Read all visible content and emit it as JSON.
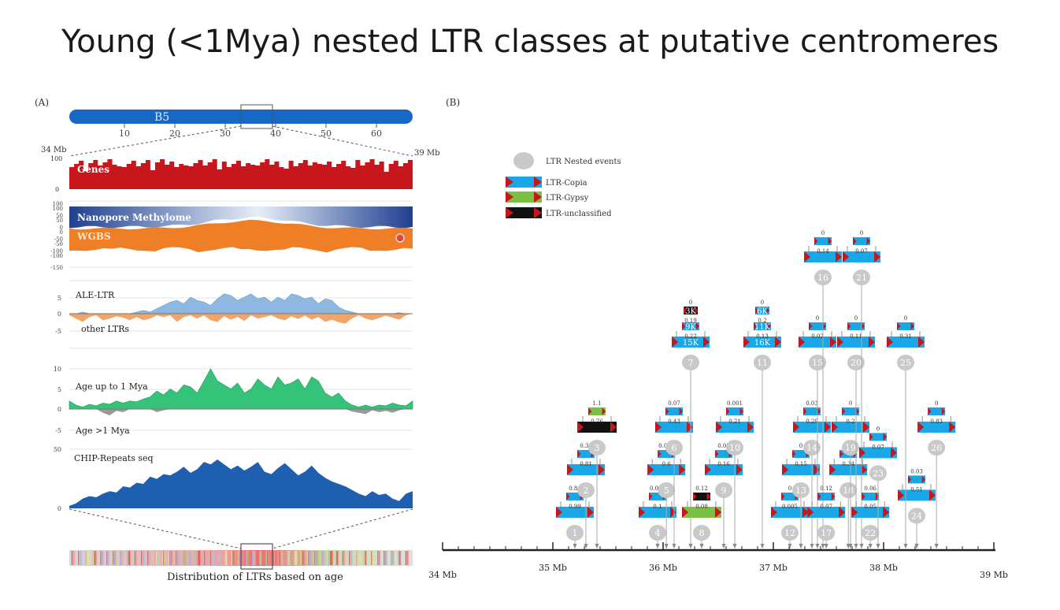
{
  "slide": {
    "title": "Young (<1Mya) nested LTR classes at putative centromeres"
  },
  "panel_a": {
    "label": "(A)",
    "chromosome": {
      "name": "B5",
      "ticks": [
        "10",
        "20",
        "30",
        "40",
        "50",
        "60"
      ],
      "zoom_start_label": "34 Mb",
      "zoom_end_label": "39 Mb"
    },
    "genes": {
      "label": "Genes",
      "y_max": "100",
      "y_zero": "0",
      "color": "#c8161d"
    },
    "methylation": {
      "nanopore_label": "Nanopore Methylome",
      "wgbs_label": "WGBS",
      "ticks": [
        "100",
        "50",
        "0",
        "-50",
        "-100",
        "100",
        "50",
        "0",
        "-50",
        "-100",
        "-150"
      ],
      "nanopore_color": "#1f3f8f",
      "wgbs_color": "#ef7f27"
    },
    "ale_ltr": {
      "label_top": "ALE-LTR",
      "label_bottom": "other LTRs",
      "ticks": [
        "5",
        "0",
        "-5"
      ],
      "top_color": "#8fb8e0",
      "bottom_color": "#f2a56b"
    },
    "age": {
      "label_top": "Age up to 1 Mya",
      "label_bottom": "Age >1 Mya",
      "ticks": [
        "10",
        "5",
        "0",
        "-5"
      ],
      "top_color": "#35c37a",
      "bottom_color": "#9a9a9a"
    },
    "chip": {
      "label": "CHIP-Repeats seq",
      "ticks": [
        "50",
        "0"
      ],
      "color": "#1f5fb0"
    },
    "distribution_label": "Distribution of LTRs based on age"
  },
  "panel_b": {
    "label": "(B)",
    "legend": {
      "nested_events": "LTR Nested events",
      "copia": "LTR-Copia",
      "gypsy": "LTR-Gypsy",
      "unclassified": "LTR-unclassified"
    },
    "colors": {
      "copia": "#1aa7e8",
      "gypsy": "#7ac143",
      "unclassified": "#111111",
      "ltr_end": "#c8161d",
      "node": "#c9c9c9"
    },
    "axis": {
      "ticks": [
        "34 Mb",
        "35 Mb",
        "36 Mb",
        "37 Mb",
        "38 Mb",
        "39 Mb"
      ]
    },
    "events": [
      {
        "id": "1",
        "position_mb": 35.2,
        "level": 1,
        "outer": {
          "type": "copia",
          "label": ""
        },
        "inner": {
          "type": "copia",
          "label": "0.99"
        },
        "top_value": "0.84"
      },
      {
        "id": "2",
        "position_mb": 35.3,
        "level": 2,
        "outer": {
          "type": "copia",
          "label": ""
        },
        "inner": {
          "type": "copia",
          "label": "0.81"
        },
        "top_value": "0.30"
      },
      {
        "id": "3",
        "position_mb": 35.4,
        "level": 3,
        "outer": {
          "type": "unclassified",
          "label": ""
        },
        "inner": {
          "type": "gypsy",
          "label": "0.76"
        },
        "top_value": "1.1"
      },
      {
        "id": "4",
        "position_mb": 35.95,
        "level": 1,
        "outer": {
          "type": "copia",
          "label": ""
        },
        "inner": {
          "type": "copia",
          "label": "0.1"
        },
        "top_value": "0.003"
      },
      {
        "id": "5",
        "position_mb": 36.03,
        "level": 2,
        "outer": {
          "type": "copia",
          "label": ""
        },
        "inner": {
          "type": "copia",
          "label": "0.6"
        },
        "top_value": "0.003"
      },
      {
        "id": "6",
        "position_mb": 36.1,
        "level": 3,
        "outer": {
          "type": "copia",
          "label": ""
        },
        "inner": {
          "type": "copia",
          "label": "0.43"
        },
        "top_value": "0.07"
      },
      {
        "id": "7",
        "position_mb": 36.25,
        "level": 5,
        "outer": {
          "type": "copia",
          "label": "15K"
        },
        "inner": {
          "type": "copia",
          "label": "9K"
        },
        "inner2": {
          "type": "unclassified",
          "label": "3K"
        },
        "mid_values": [
          "0.22",
          "0.19"
        ],
        "top_value": "0"
      },
      {
        "id": "8",
        "position_mb": 36.35,
        "level": 1,
        "outer": {
          "type": "gypsy",
          "label": ""
        },
        "inner": {
          "type": "unclassified",
          "label": "0.08"
        },
        "top_value": "0.12"
      },
      {
        "id": "9",
        "position_mb": 36.55,
        "level": 2,
        "outer": {
          "type": "copia",
          "label": ""
        },
        "inner": {
          "type": "copia",
          "label": "0.16"
        },
        "top_value": "0.07"
      },
      {
        "id": "10",
        "position_mb": 36.65,
        "level": 3,
        "outer": {
          "type": "copia",
          "label": ""
        },
        "inner": {
          "type": "copia",
          "label": "0.21"
        },
        "top_value": "0.001"
      },
      {
        "id": "11",
        "position_mb": 36.9,
        "level": 5,
        "outer": {
          "type": "copia",
          "label": "16K"
        },
        "inner": {
          "type": "copia",
          "label": "11K"
        },
        "inner2": {
          "type": "copia",
          "label": "6K"
        },
        "mid_values": [
          "0.13",
          "0.2"
        ],
        "top_value": "0"
      },
      {
        "id": "12",
        "position_mb": 37.15,
        "level": 1,
        "outer": {
          "type": "copia",
          "label": ""
        },
        "inner": {
          "type": "copia",
          "label": "0.005"
        },
        "top_value": "0"
      },
      {
        "id": "13",
        "position_mb": 37.25,
        "level": 2,
        "outer": {
          "type": "copia",
          "label": ""
        },
        "inner": {
          "type": "copia",
          "label": "0.15"
        },
        "top_value": "0"
      },
      {
        "id": "14",
        "position_mb": 37.35,
        "level": 3,
        "outer": {
          "type": "copia",
          "label": ""
        },
        "inner": {
          "type": "copia",
          "label": "0.29"
        },
        "top_value": "0.03"
      },
      {
        "id": "15",
        "position_mb": 37.4,
        "level": 5,
        "outer": {
          "type": "copia",
          "label": ""
        },
        "inner": {
          "type": "copia",
          "label": "0.02"
        },
        "top_value": "0"
      },
      {
        "id": "16",
        "position_mb": 37.45,
        "level": 7,
        "outer": {
          "type": "copia",
          "label": ""
        },
        "inner": {
          "type": "copia",
          "label": "0.14"
        },
        "top_value": "0"
      },
      {
        "id": "17",
        "position_mb": 37.48,
        "level": 1,
        "outer": {
          "type": "copia",
          "label": ""
        },
        "inner": {
          "type": "copia",
          "label": "0.07"
        },
        "top_value": "0.12"
      },
      {
        "id": "18",
        "position_mb": 37.68,
        "level": 2,
        "outer": {
          "type": "copia",
          "label": ""
        },
        "inner": {
          "type": "copia",
          "label": "0.34"
        },
        "top_value": "0"
      },
      {
        "id": "19",
        "position_mb": 37.7,
        "level": 3,
        "outer": {
          "type": "copia",
          "label": ""
        },
        "inner": {
          "type": "copia",
          "label": "0.2"
        },
        "top_value": "0"
      },
      {
        "id": "20",
        "position_mb": 37.75,
        "level": 5,
        "outer": {
          "type": "copia",
          "label": ""
        },
        "inner": {
          "type": "copia",
          "label": "0.11"
        },
        "top_value": "0"
      },
      {
        "id": "21",
        "position_mb": 37.8,
        "level": 7,
        "outer": {
          "type": "copia",
          "label": ""
        },
        "inner": {
          "type": "copia",
          "label": "0.07"
        },
        "top_value": "0"
      },
      {
        "id": "22",
        "position_mb": 37.88,
        "level": 1,
        "outer": {
          "type": "copia",
          "label": ""
        },
        "inner": {
          "type": "copia",
          "label": "0.05"
        },
        "top_value": "0.06"
      },
      {
        "id": "23",
        "position_mb": 37.95,
        "level": 2.4,
        "outer": {
          "type": "copia",
          "label": ""
        },
        "inner": {
          "type": "copia",
          "label": "0.07"
        },
        "top_value": "0"
      },
      {
        "id": "24",
        "position_mb": 38.3,
        "level": 1.4,
        "outer": {
          "type": "copia",
          "label": ""
        },
        "inner": {
          "type": "copia",
          "label": "0.51"
        },
        "top_value": "0.03"
      },
      {
        "id": "25",
        "position_mb": 38.2,
        "level": 5,
        "outer": {
          "type": "copia",
          "label": ""
        },
        "inner": {
          "type": "copia",
          "label": "0.31"
        },
        "top_value": "0"
      },
      {
        "id": "26",
        "position_mb": 38.48,
        "level": 3,
        "outer": {
          "type": "copia",
          "label": ""
        },
        "inner": {
          "type": "copia",
          "label": "0.83"
        },
        "top_value": "0"
      }
    ]
  }
}
